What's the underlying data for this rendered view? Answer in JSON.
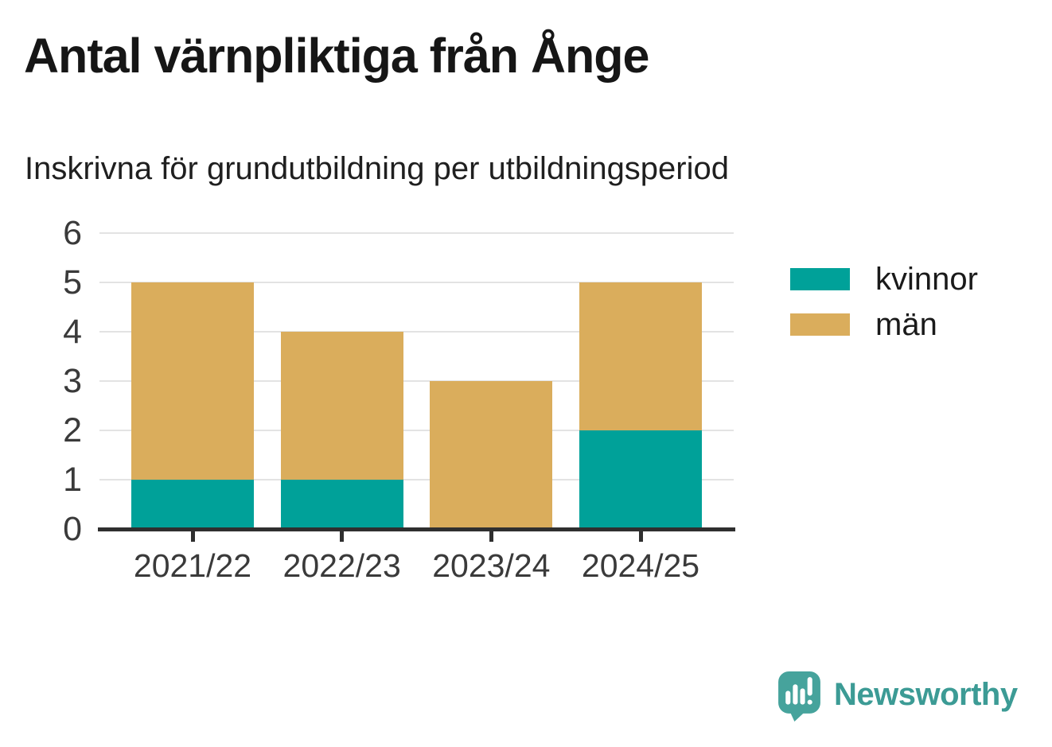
{
  "header": {
    "title": "Antal värnpliktiga från Ånge",
    "subtitle": "Inskrivna för grundutbildning per utbildningsperiod"
  },
  "chart_data": {
    "type": "bar",
    "stacked": true,
    "title": "Antal värnpliktiga från Ånge",
    "subtitle": "Inskrivna för grundutbildning per utbildningsperiod",
    "categories": [
      "2021/22",
      "2022/23",
      "2023/24",
      "2024/25"
    ],
    "series": [
      {
        "name": "kvinnor",
        "color": "#00A199",
        "values": [
          1,
          1,
          0,
          2
        ]
      },
      {
        "name": "män",
        "color": "#DAAD5C",
        "values": [
          4,
          3,
          3,
          3
        ]
      }
    ],
    "totals": [
      5,
      4,
      3,
      5
    ],
    "xlabel": "",
    "ylabel": "",
    "ylim": [
      0,
      6
    ],
    "yticks": [
      0,
      1,
      2,
      3,
      4,
      5,
      6
    ],
    "grid": true,
    "legend_position": "right-top"
  },
  "legend": {
    "items": [
      {
        "label": "kvinnor",
        "color": "#00A199"
      },
      {
        "label": "män",
        "color": "#DAAD5C"
      }
    ]
  },
  "branding": {
    "logo_text": "Newsworthy",
    "logo_icon": "newsworthy-speech-bubble-bar-chart-icon",
    "logo_text_color": "#3C9B95",
    "logo_icon_color": "#46A39C"
  },
  "style": {
    "gridline_color": "#E3E3E3",
    "axis_color": "#2F2F2F",
    "tick_label_color": "#3A3A3A",
    "title_color": "#161616",
    "background": "#FFFFFF"
  }
}
